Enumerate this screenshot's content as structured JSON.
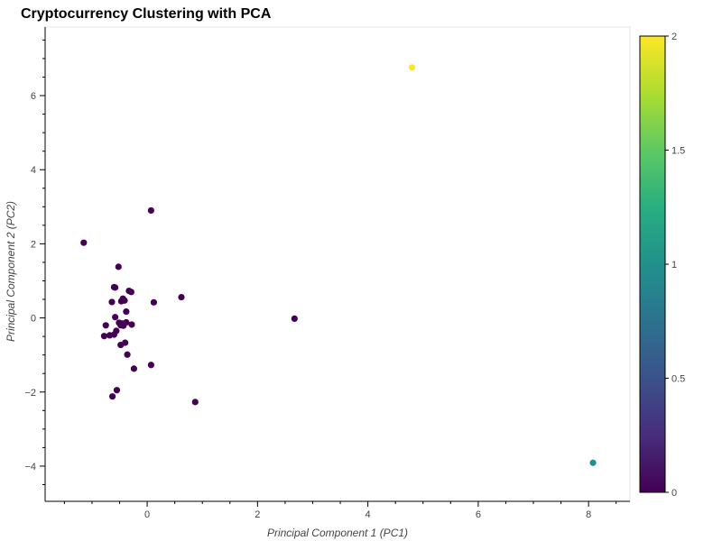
{
  "chart_data": {
    "type": "scatter",
    "title": "Cryptocurrency Clustering with PCA",
    "xlabel": "Principal Component 1 (PC1)",
    "ylabel": "Principal Component 2 (PC2)",
    "xlim": [
      -1.85,
      8.75
    ],
    "ylim": [
      -4.95,
      7.85
    ],
    "x_ticks": [
      0,
      2,
      4,
      6,
      8
    ],
    "y_ticks": [
      -4,
      -2,
      0,
      2,
      4,
      6
    ],
    "x_tick_labels": [
      "0",
      "2",
      "4",
      "6",
      "8"
    ],
    "y_tick_labels": [
      "−4",
      "−2",
      "0",
      "2",
      "4",
      "6"
    ],
    "grid": false,
    "colormap": "viridis",
    "colorbar": {
      "range": [
        0,
        2
      ],
      "ticks": [
        0,
        0.5,
        1,
        1.5,
        2
      ],
      "tick_labels": [
        "0",
        "0.5",
        "1",
        "1.5",
        "2"
      ]
    },
    "points": [
      {
        "x": -1.15,
        "y": 2.03,
        "cluster": 0
      },
      {
        "x": 0.07,
        "y": 2.9,
        "cluster": 0
      },
      {
        "x": -0.52,
        "y": 1.38,
        "cluster": 0
      },
      {
        "x": -0.6,
        "y": 0.83,
        "cluster": 0
      },
      {
        "x": -0.58,
        "y": 0.82,
        "cluster": 0
      },
      {
        "x": -0.33,
        "y": 0.73,
        "cluster": 0
      },
      {
        "x": -0.29,
        "y": 0.7,
        "cluster": 0
      },
      {
        "x": 0.62,
        "y": 0.56,
        "cluster": 0
      },
      {
        "x": -0.44,
        "y": 0.52,
        "cluster": 0
      },
      {
        "x": -0.41,
        "y": 0.47,
        "cluster": 0
      },
      {
        "x": -0.47,
        "y": 0.45,
        "cluster": 0
      },
      {
        "x": -0.64,
        "y": 0.43,
        "cluster": 0
      },
      {
        "x": 0.12,
        "y": 0.42,
        "cluster": 0
      },
      {
        "x": -0.38,
        "y": 0.17,
        "cluster": 0
      },
      {
        "x": -0.58,
        "y": 0.02,
        "cluster": 0
      },
      {
        "x": 2.67,
        "y": -0.02,
        "cluster": 0
      },
      {
        "x": -0.51,
        "y": -0.13,
        "cluster": 0
      },
      {
        "x": -0.45,
        "y": -0.15,
        "cluster": 0
      },
      {
        "x": -0.38,
        "y": -0.12,
        "cluster": 0
      },
      {
        "x": -0.28,
        "y": -0.18,
        "cluster": 0
      },
      {
        "x": -0.75,
        "y": -0.2,
        "cluster": 0
      },
      {
        "x": -0.48,
        "y": -0.2,
        "cluster": 0
      },
      {
        "x": -0.43,
        "y": -0.21,
        "cluster": 0
      },
      {
        "x": -0.56,
        "y": -0.35,
        "cluster": 0
      },
      {
        "x": -0.6,
        "y": -0.45,
        "cluster": 0
      },
      {
        "x": -0.68,
        "y": -0.47,
        "cluster": 0
      },
      {
        "x": -0.78,
        "y": -0.49,
        "cluster": 0
      },
      {
        "x": -0.4,
        "y": -0.67,
        "cluster": 0
      },
      {
        "x": -0.48,
        "y": -0.73,
        "cluster": 0
      },
      {
        "x": -0.36,
        "y": -0.99,
        "cluster": 0
      },
      {
        "x": 0.07,
        "y": -1.27,
        "cluster": 0
      },
      {
        "x": -0.24,
        "y": -1.37,
        "cluster": 0
      },
      {
        "x": -0.55,
        "y": -1.95,
        "cluster": 0
      },
      {
        "x": -0.63,
        "y": -2.12,
        "cluster": 0
      },
      {
        "x": 0.87,
        "y": -2.27,
        "cluster": 0
      },
      {
        "x": 4.8,
        "y": 6.76,
        "cluster": 2
      },
      {
        "x": 8.08,
        "y": -3.91,
        "cluster": 1
      }
    ],
    "colors": {
      "cluster_0": "#440154",
      "cluster_1": "#21918c",
      "cluster_2": "#fde725"
    }
  }
}
